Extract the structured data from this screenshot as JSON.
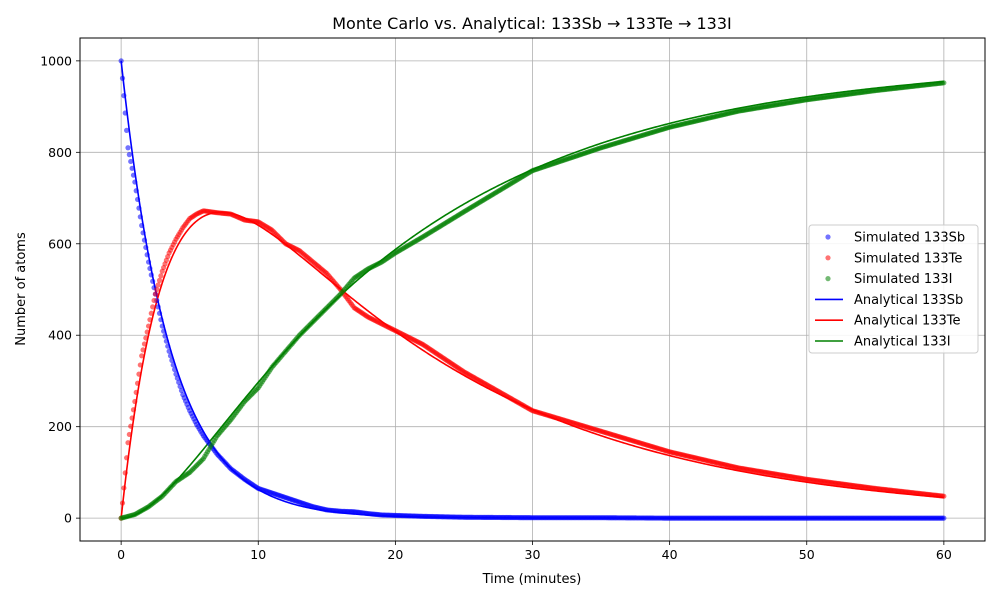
{
  "chart_data": {
    "type": "line",
    "title": "Monte Carlo vs. Analytical: 133Sb → 133Te → 133I",
    "xlabel": "Time (minutes)",
    "ylabel": "Number of atoms",
    "xlim": [
      -3,
      63
    ],
    "ylim": [
      -50,
      1050
    ],
    "xticks": [
      0,
      10,
      20,
      30,
      40,
      50,
      60
    ],
    "yticks": [
      0,
      200,
      400,
      600,
      800,
      1000
    ],
    "grid": true,
    "legend_position": "center-right",
    "scatter_series": [
      {
        "name": "Simulated 133Sb",
        "color": "#0000ff",
        "x": [
          0,
          0.5,
          1,
          1.5,
          2,
          2.5,
          3,
          3.5,
          4,
          4.5,
          5,
          5.5,
          6,
          7,
          8,
          9,
          10,
          11,
          12,
          13,
          14,
          15,
          16,
          17,
          18,
          19,
          20,
          22,
          25,
          30,
          35,
          40,
          50,
          60
        ],
        "y": [
          1000,
          810,
          735,
          640,
          560,
          490,
          420,
          365,
          315,
          270,
          235,
          205,
          180,
          140,
          108,
          85,
          65,
          55,
          45,
          35,
          25,
          18,
          15,
          14,
          10,
          7,
          6,
          4,
          2,
          1,
          1,
          0,
          0,
          0
        ]
      },
      {
        "name": "Simulated 133Te",
        "color": "#ff0000",
        "x": [
          0,
          0.5,
          1,
          1.5,
          2,
          2.5,
          3,
          3.5,
          4,
          4.5,
          5,
          5.5,
          6,
          7,
          8,
          9,
          10,
          11,
          12,
          13,
          14,
          15,
          16,
          17,
          18,
          19,
          20,
          22,
          25,
          30,
          35,
          40,
          45,
          50,
          55,
          60
        ],
        "y": [
          0,
          165,
          255,
          355,
          420,
          490,
          540,
          580,
          610,
          635,
          655,
          665,
          672,
          668,
          665,
          652,
          648,
          630,
          600,
          585,
          560,
          535,
          500,
          460,
          440,
          425,
          410,
          380,
          320,
          235,
          190,
          145,
          110,
          85,
          65,
          48
        ]
      },
      {
        "name": "Simulated 133I",
        "color": "#008000",
        "x": [
          0,
          1,
          2,
          3,
          4,
          5,
          6,
          7,
          8,
          9,
          10,
          11,
          12,
          13,
          14,
          15,
          16,
          17,
          18,
          19,
          20,
          22,
          25,
          30,
          35,
          40,
          45,
          50,
          55,
          60
        ],
        "y": [
          0,
          8,
          25,
          48,
          80,
          100,
          130,
          180,
          215,
          255,
          285,
          330,
          365,
          400,
          430,
          460,
          490,
          525,
          545,
          560,
          580,
          615,
          670,
          760,
          810,
          855,
          890,
          915,
          935,
          952
        ]
      }
    ],
    "line_series": [
      {
        "name": "Analytical 133Sb",
        "color": "#0000ff",
        "model": "sb",
        "N0": 1000,
        "k1": 0.2772
      },
      {
        "name": "Analytical 133Te",
        "color": "#ff0000",
        "model": "te",
        "N0": 1000,
        "k1": 0.2772,
        "k2": 0.0553
      },
      {
        "name": "Analytical 133I",
        "color": "#008000",
        "model": "i",
        "N0": 1000,
        "k1": 0.2772,
        "k2": 0.0553
      }
    ]
  }
}
